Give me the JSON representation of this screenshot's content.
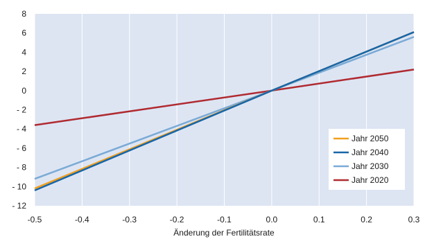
{
  "chart_data": {
    "type": "line",
    "xlabel": "Änderung der Fertilitätsrate",
    "ylabel": "",
    "xlim": [
      -0.5,
      0.3
    ],
    "ylim": [
      -12,
      8
    ],
    "x_ticks": [
      "-0.5",
      "-0.4",
      "-0.3",
      "-0.2",
      "-0.1",
      "0.0",
      "0.1",
      "0.2",
      "0.3"
    ],
    "y_ticks": [
      "8",
      "6",
      "4",
      "2",
      "0",
      "- 2",
      "- 4",
      "- 6",
      "- 8",
      "- 10",
      "- 12"
    ],
    "grid": "vertical",
    "legend_position": "bottom-right",
    "plot_background": "#dde5f3",
    "series": [
      {
        "name": "Jahr 2050",
        "color": "#f0a01e",
        "x": [
          -0.5,
          0.0,
          0.3
        ],
        "y": [
          -10.2,
          0.0,
          6.1
        ]
      },
      {
        "name": "Jahr 2040",
        "color": "#1766a8",
        "x": [
          -0.5,
          0.0,
          0.3
        ],
        "y": [
          -10.4,
          0.0,
          6.1
        ]
      },
      {
        "name": "Jahr 2030",
        "color": "#7aaad6",
        "x": [
          -0.5,
          0.0,
          0.3
        ],
        "y": [
          -9.2,
          0.0,
          5.6
        ]
      },
      {
        "name": "Jahr 2020",
        "color": "#b02a30",
        "x": [
          -0.5,
          0.0,
          0.3
        ],
        "y": [
          -3.6,
          0.0,
          2.2
        ]
      }
    ]
  }
}
